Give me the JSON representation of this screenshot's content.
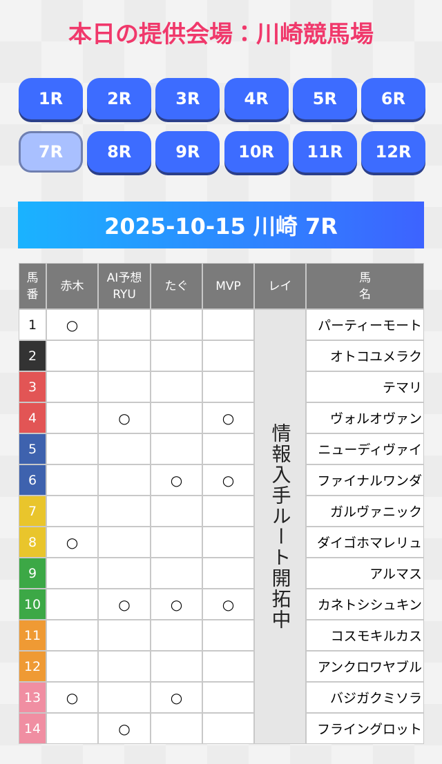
{
  "header": {
    "title": "本日の提供会場：川崎競馬場"
  },
  "races": [
    "1R",
    "2R",
    "3R",
    "4R",
    "5R",
    "6R",
    "7R",
    "8R",
    "9R",
    "10R",
    "11R",
    "12R"
  ],
  "selected_race": 6,
  "banner": "2025-10-15 川崎 7R",
  "table": {
    "headers": [
      [
        "馬",
        "番"
      ],
      [
        "赤木"
      ],
      [
        "AI予想",
        "RYU"
      ],
      [
        "たぐ"
      ],
      [
        "MVP"
      ],
      [
        "レイ"
      ],
      [
        "馬",
        "名"
      ]
    ],
    "rei_note": "情報入手ルート開拓中",
    "rows": [
      [
        "1",
        "○",
        null,
        null,
        null,
        "パーティーモート"
      ],
      [
        "2",
        null,
        null,
        null,
        null,
        "オトコユメラク"
      ],
      [
        "3",
        null,
        null,
        null,
        null,
        "テマリ"
      ],
      [
        "4",
        null,
        "○",
        null,
        "○",
        "ヴォルオヴァン"
      ],
      [
        "5",
        null,
        null,
        null,
        null,
        "ニューディヴァイ"
      ],
      [
        "6",
        null,
        null,
        "○",
        "○",
        "ファイナルワンダ"
      ],
      [
        "7",
        null,
        null,
        null,
        null,
        "ガルヴァニック"
      ],
      [
        "8",
        "○",
        null,
        null,
        null,
        "ダイゴホマレリュ"
      ],
      [
        "9",
        null,
        null,
        null,
        null,
        "アルマス"
      ],
      [
        "10",
        null,
        "○",
        "○",
        "○",
        "カネトシシュキン"
      ],
      [
        "11",
        null,
        null,
        null,
        null,
        "コスモキルカス"
      ],
      [
        "12",
        null,
        null,
        null,
        null,
        "アンクロワヤブル"
      ],
      [
        "13",
        "○",
        null,
        "○",
        null,
        "バジガクミソラ"
      ],
      [
        "14",
        null,
        "○",
        null,
        null,
        "フライングロット"
      ]
    ]
  }
}
